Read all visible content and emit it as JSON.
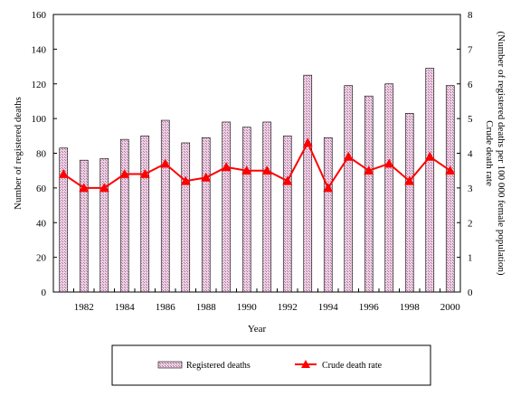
{
  "chart_data": {
    "type": "bar",
    "x": [
      1981,
      1982,
      1983,
      1984,
      1985,
      1986,
      1987,
      1988,
      1989,
      1990,
      1991,
      1992,
      1993,
      1994,
      1995,
      1996,
      1997,
      1998,
      1999,
      2000
    ],
    "series": [
      {
        "name": "Registered deaths",
        "type": "bar",
        "axis": "left",
        "values": [
          83,
          76,
          77,
          88,
          90,
          99,
          86,
          89,
          98,
          95,
          98,
          90,
          125,
          89,
          119,
          113,
          120,
          103,
          129,
          119
        ]
      },
      {
        "name": "Crude death rate",
        "type": "line",
        "axis": "right",
        "values": [
          3.4,
          3.0,
          3.0,
          3.4,
          3.4,
          3.7,
          3.2,
          3.3,
          3.6,
          3.5,
          3.5,
          3.2,
          4.3,
          3.0,
          3.9,
          3.5,
          3.7,
          3.2,
          3.9,
          3.5
        ]
      }
    ],
    "xlabel": "Year",
    "ylabel": "Number of registered deaths",
    "y2label": "Crude death rate (Number of registered deaths per 100 000 female population)",
    "y2label_lines": [
      "Crude death rate",
      "(Number of registered deaths per 100 000 female population)"
    ],
    "ylim": [
      0,
      160
    ],
    "y2lim": [
      0,
      8
    ],
    "yticks": [
      0,
      20,
      40,
      60,
      80,
      100,
      120,
      140,
      160
    ],
    "y2ticks": [
      0,
      1,
      2,
      3,
      4,
      5,
      6,
      7,
      8
    ],
    "xtick_labels": [
      "1982",
      "1984",
      "1986",
      "1988",
      "1990",
      "1992",
      "1994",
      "1996",
      "1998",
      "2000"
    ],
    "grid": false,
    "legend_position": "bottom",
    "colors": {
      "bar_fill": "#f2cfe0",
      "bar_hatch": "#9c7aa8",
      "bar_edge": "#000000",
      "line": "#ff0000",
      "marker": "#ff0000"
    }
  }
}
